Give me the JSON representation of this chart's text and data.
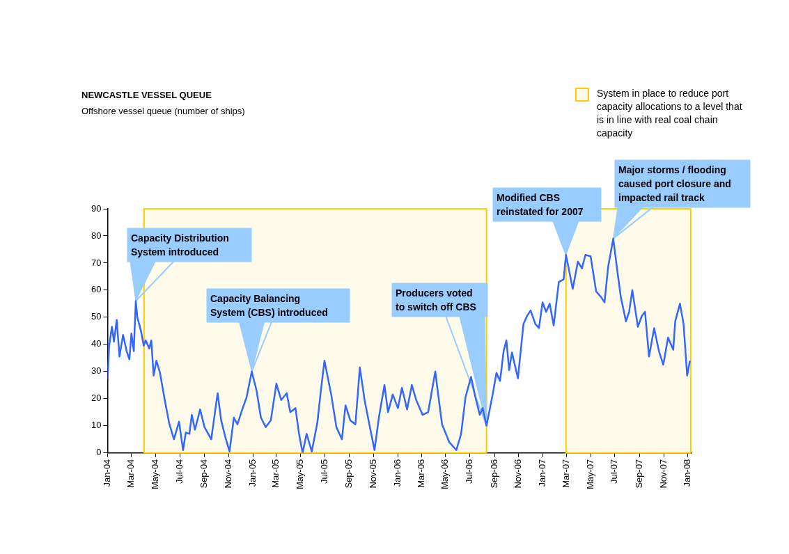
{
  "chart_data": {
    "type": "line",
    "title": "NEWCASTLE VESSEL QUEUE",
    "subtitle": "Offshore vessel queue (number of ships)",
    "x": [
      "2004-01-01",
      "2004-01-05",
      "2004-01-12",
      "2004-01-17",
      "2004-01-24",
      "2004-01-31",
      "2004-02-09",
      "2004-02-18",
      "2004-02-25",
      "2004-03-01",
      "2004-03-07",
      "2004-03-12",
      "2004-03-16",
      "2004-03-25",
      "2004-04-01",
      "2004-04-06",
      "2004-04-15",
      "2004-04-20",
      "2004-04-26",
      "2004-05-03",
      "2004-05-12",
      "2004-05-24",
      "2004-06-04",
      "2004-06-16",
      "2004-06-29",
      "2004-07-09",
      "2004-07-16",
      "2004-07-25",
      "2004-07-31",
      "2004-08-08",
      "2004-08-21",
      "2004-09-01",
      "2004-09-18",
      "2004-10-04",
      "2004-10-13",
      "2004-10-24",
      "2004-11-03",
      "2004-11-14",
      "2004-11-23",
      "2004-12-05",
      "2004-12-16",
      "2004-12-29",
      "2005-01-10",
      "2005-01-21",
      "2005-02-02",
      "2005-02-15",
      "2005-03-01",
      "2005-03-13",
      "2005-03-27",
      "2005-04-05",
      "2005-04-18",
      "2005-04-27",
      "2005-05-06",
      "2005-05-16",
      "2005-05-29",
      "2005-06-12",
      "2005-06-21",
      "2005-06-30",
      "2005-07-17",
      "2005-07-30",
      "2005-08-13",
      "2005-08-22",
      "2005-09-03",
      "2005-09-16",
      "2005-09-27",
      "2005-10-09",
      "2005-10-21",
      "2005-11-03",
      "2005-11-14",
      "2005-11-28",
      "2005-12-07",
      "2005-12-19",
      "2006-01-01",
      "2006-01-11",
      "2006-01-24",
      "2006-02-05",
      "2006-02-16",
      "2006-03-04",
      "2006-03-18",
      "2006-04-05",
      "2006-04-14",
      "2006-04-22",
      "2006-05-10",
      "2006-05-28",
      "2006-06-09",
      "2006-06-20",
      "2006-07-04",
      "2006-07-15",
      "2006-07-26",
      "2006-08-02",
      "2006-08-12",
      "2006-08-28",
      "2006-09-06",
      "2006-09-15",
      "2006-09-24",
      "2006-10-01",
      "2006-10-08",
      "2006-10-15",
      "2006-10-30",
      "2006-11-13",
      "2006-11-22",
      "2006-12-01",
      "2006-12-13",
      "2006-12-22",
      "2006-12-31",
      "2007-01-09",
      "2007-01-18",
      "2007-01-28",
      "2007-02-10",
      "2007-02-22",
      "2007-02-28",
      "2007-03-17",
      "2007-03-30",
      "2007-04-09",
      "2007-04-18",
      "2007-05-01",
      "2007-05-15",
      "2007-05-27",
      "2007-06-05",
      "2007-06-14",
      "2007-06-27",
      "2007-07-06",
      "2007-07-16",
      "2007-07-29",
      "2007-08-06",
      "2007-08-14",
      "2007-08-28",
      "2007-09-07",
      "2007-09-15",
      "2007-09-25",
      "2007-10-08",
      "2007-10-20",
      "2007-10-31",
      "2007-11-12",
      "2007-11-25",
      "2007-11-30",
      "2007-12-12",
      "2007-12-21",
      "2007-12-30",
      "2008-01-06"
    ],
    "series": [
      {
        "color": "#3366ff",
        "values": [
          27,
          39.5,
          46.5,
          41,
          49,
          35.5,
          43.5,
          37.5,
          34.5,
          44,
          37.5,
          56,
          50,
          45,
          39.5,
          41.5,
          38.5,
          41.5,
          28.5,
          34,
          29.5,
          19.5,
          11,
          5,
          11.5,
          1,
          7.5,
          7,
          14,
          8.5,
          16,
          9.5,
          5,
          22,
          12,
          5.5,
          0.5,
          13,
          10.5,
          16,
          20.5,
          30,
          23,
          13,
          9.5,
          12,
          25.5,
          19.5,
          22,
          15,
          16.5,
          7,
          0,
          7,
          0.5,
          11,
          23,
          34,
          21.5,
          9.5,
          5,
          17.5,
          12,
          10.5,
          31.5,
          19.5,
          10.5,
          1,
          13,
          25,
          15,
          21.5,
          16.5,
          24,
          16,
          25,
          19.5,
          14,
          15,
          30,
          19.5,
          10.5,
          4,
          1,
          7,
          20.5,
          28,
          20.5,
          14,
          16.5,
          10,
          22,
          29.5,
          26.5,
          37.5,
          41.5,
          30.5,
          37,
          27.5,
          47.5,
          50.5,
          52.5,
          47.5,
          46,
          55.5,
          52,
          55,
          47,
          63,
          64,
          73,
          60.5,
          70.5,
          68,
          73,
          72.5,
          59.5,
          57.5,
          55.5,
          68.5,
          79,
          68.5,
          57.5,
          48.5,
          52,
          60,
          46.5,
          50.5,
          52,
          35.5,
          46,
          37.5,
          32.5,
          42.5,
          38,
          48.5,
          55,
          47.5,
          28.5,
          34
        ]
      }
    ],
    "xlim": [
      "2004-01-01",
      "2008-01-10"
    ],
    "xticks": [
      {
        "value": "2004-01",
        "label": "Jan-04"
      },
      {
        "value": "2004-03",
        "label": "Mar-04"
      },
      {
        "value": "2004-05",
        "label": "May-04"
      },
      {
        "value": "2004-07",
        "label": "Jul-04"
      },
      {
        "value": "2004-09",
        "label": "Sep-04"
      },
      {
        "value": "2004-11",
        "label": "Nov-04"
      },
      {
        "value": "2005-01",
        "label": "Jan-05"
      },
      {
        "value": "2005-03",
        "label": "Mar-05"
      },
      {
        "value": "2005-05",
        "label": "May-05"
      },
      {
        "value": "2005-07",
        "label": "Jul-05"
      },
      {
        "value": "2005-09",
        "label": "Sep-05"
      },
      {
        "value": "2005-11",
        "label": "Nov-05"
      },
      {
        "value": "2006-01",
        "label": "Jan-06"
      },
      {
        "value": "2006-03",
        "label": "Mar-06"
      },
      {
        "value": "2006-05",
        "label": "May-06"
      },
      {
        "value": "2006-07",
        "label": "Jul-06"
      },
      {
        "value": "2006-09",
        "label": "Sep-06"
      },
      {
        "value": "2006-11",
        "label": "Nov-06"
      },
      {
        "value": "2007-01",
        "label": "Jan-07"
      },
      {
        "value": "2007-03",
        "label": "Mar-07"
      },
      {
        "value": "2007-05",
        "label": "May-07"
      },
      {
        "value": "2007-07",
        "label": "Jul-07"
      },
      {
        "value": "2007-09",
        "label": "Sep-07"
      },
      {
        "value": "2007-11",
        "label": "Nov-07"
      },
      {
        "value": "2008-01",
        "label": "Jan-08"
      }
    ],
    "ylim": [
      0,
      90
    ],
    "yticks": [
      0,
      10,
      20,
      30,
      40,
      50,
      60,
      70,
      80,
      90
    ],
    "grid": false,
    "marker": "none",
    "line_style": "solid",
    "legend": "top right",
    "bands": [
      {
        "axis": "x",
        "from": "2004-04-02",
        "to": "2006-08-12",
        "color": "#ffcc00",
        "label": "System in place to reduce port capacity allocations to a level that is in line with real coal chain capacity"
      },
      {
        "axis": "x",
        "from": "2007-02-28",
        "to": "2008-01-08",
        "color": "#ffcc00"
      }
    ],
    "annotations": [
      {
        "text": "Capacity Distribution System introduced",
        "x": "2004-03-12",
        "y": 56
      },
      {
        "text": "Capacity Balancing System (CBS) introduced",
        "x": "2004-12-29",
        "y": 30
      },
      {
        "text": "Producers voted to switch off CBS",
        "x": "2006-08-12",
        "y": 10
      },
      {
        "text": "Modified CBS reinstated for 2007",
        "x": "2007-02-28",
        "y": 73
      },
      {
        "text": "Major storms / flooding caused port closure and impacted rail track",
        "x": "2007-06-27",
        "y": 79
      }
    ]
  }
}
